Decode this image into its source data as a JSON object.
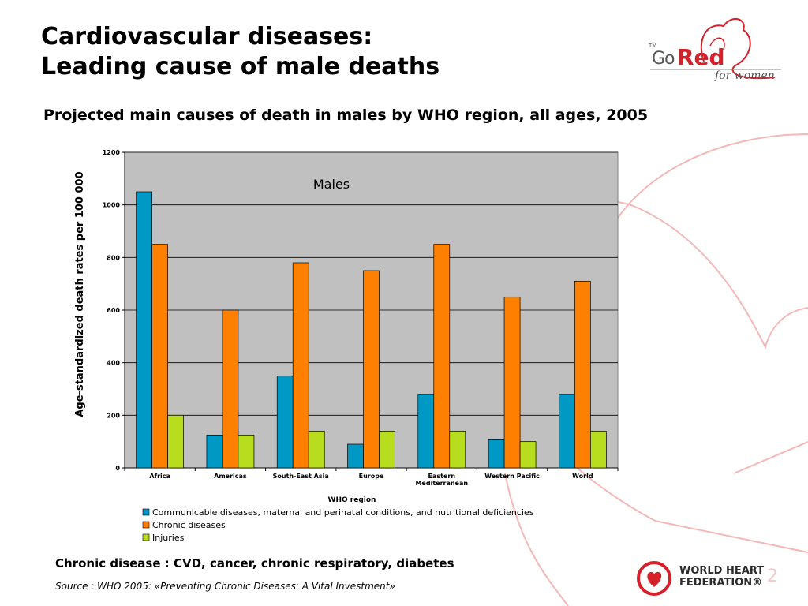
{
  "slide": {
    "title_line1": "Cardiovascular diseases:",
    "title_line2": "Leading cause of male deaths",
    "subtitle": "Projected main causes of death in males by WHO region, all ages, 2005",
    "footer_note": "Chronic disease : CVD, cancer, chronic respiratory, diabetes",
    "source": "Source : WHO 2005: «Preventing Chronic Diseases: A Vital Investment»",
    "page_number": "2"
  },
  "logos": {
    "gored_go": "Go",
    "gored_red": "Red",
    "gored_tm": "TM",
    "gored_tagline": "for women",
    "whf_line1": "WORLD HEART",
    "whf_line2": "FEDERATION®"
  },
  "colors": {
    "communicable": "#0099c6",
    "chronic": "#ff8000",
    "injuries": "#b8dc1e",
    "plot_bg": "#c0c0c0",
    "brand_red": "#d6202a"
  },
  "chart_data": {
    "type": "bar",
    "title": "Males",
    "xlabel": "WHO region",
    "ylabel": "Age-standardized death rates per 100 000",
    "ylim": [
      0,
      1200
    ],
    "yticks": [
      0,
      200,
      400,
      600,
      800,
      1000,
      1200
    ],
    "grid": true,
    "legend_position": "bottom",
    "categories": [
      "Africa",
      "Americas",
      "South-East Asia",
      "Europe",
      "Eastern Mediterranean",
      "Western Pacific",
      "World"
    ],
    "series": [
      {
        "name": "Communicable diseases, maternal and perinatal conditions, and nutritional deficiencies",
        "values": [
          1050,
          125,
          350,
          90,
          280,
          110,
          280
        ]
      },
      {
        "name": "Chronic diseases",
        "values": [
          850,
          600,
          780,
          750,
          850,
          650,
          710
        ]
      },
      {
        "name": "Injuries",
        "values": [
          200,
          125,
          140,
          140,
          140,
          100,
          140
        ]
      }
    ]
  }
}
